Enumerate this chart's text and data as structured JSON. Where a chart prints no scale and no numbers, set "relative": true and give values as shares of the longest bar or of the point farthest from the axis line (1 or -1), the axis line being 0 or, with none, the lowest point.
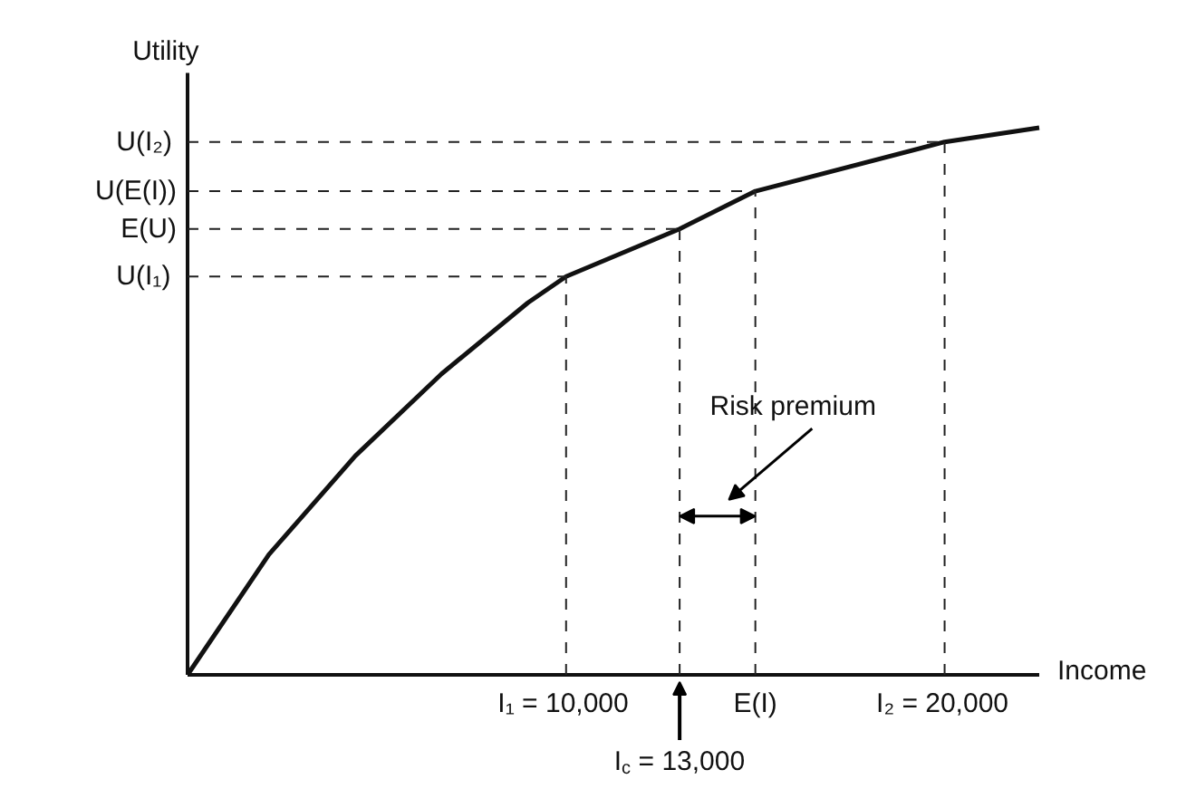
{
  "chart_data": {
    "type": "line",
    "relative": true,
    "xlabel": "Income",
    "ylabel": "Utility",
    "x": [
      0,
      2150,
      4430,
      6710,
      8990,
      10000,
      13000,
      15000,
      20000,
      22500
    ],
    "series": [
      {
        "color": "#111111",
        "values": [
          0,
          0.22,
          0.4,
          0.55,
          0.68,
          0.728,
          0.815,
          0.884,
          0.974,
          1
        ]
      }
    ],
    "xlim": [
      0,
      22500
    ],
    "xticks": [
      {
        "value": 10000,
        "label": "I₁ = 10,000"
      },
      {
        "value": 15000,
        "label": "E(I)"
      },
      {
        "value": 20000,
        "label": "I₂ = 20,000"
      }
    ],
    "ref_lines": [
      {
        "axis": "y",
        "value": 0.974,
        "label": "U(I₂)",
        "line_style": "dashed"
      },
      {
        "axis": "y",
        "value": 0.884,
        "label": "U(E(I))",
        "line_style": "dashed"
      },
      {
        "axis": "y",
        "value": 0.815,
        "label": "E(U)",
        "line_style": "dashed"
      },
      {
        "axis": "y",
        "value": 0.728,
        "label": "U(I₁)",
        "line_style": "dashed"
      },
      {
        "axis": "x",
        "value": 10000,
        "line_style": "dashed"
      },
      {
        "axis": "x",
        "value": 13000,
        "line_style": "dashed"
      },
      {
        "axis": "x",
        "value": 15000,
        "line_style": "dashed"
      },
      {
        "axis": "x",
        "value": 20000,
        "line_style": "dashed"
      }
    ],
    "annotations": [
      {
        "text": "I$_{c}$ = 13,000",
        "x": 13000,
        "y": 0
      },
      "Risk premium"
    ],
    "line_style": "solid"
  }
}
